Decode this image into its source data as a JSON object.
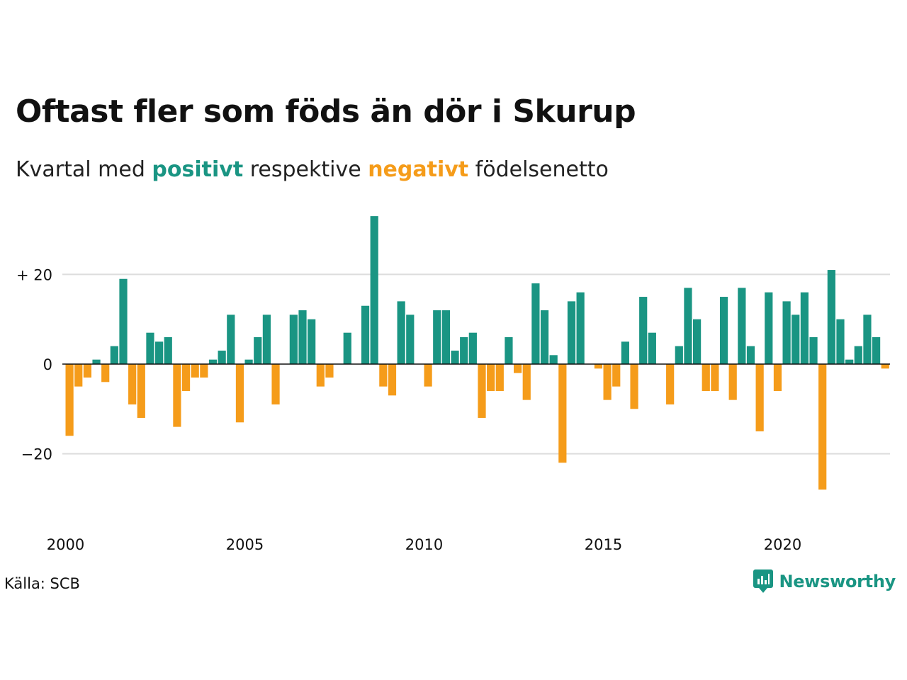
{
  "header": {
    "title": "Oftast fler som föds än dör i Skurup",
    "subtitle_prefix": "Kvartal med ",
    "subtitle_positive": "positivt",
    "subtitle_middle": " respektive ",
    "subtitle_negative": "negativt",
    "subtitle_suffix": " födelsenetto"
  },
  "footer": {
    "source": "Källa: SCB",
    "brand": "Newsworthy",
    "brand_icon": "newsworthy-logo-icon"
  },
  "colors": {
    "positive": "#1a9583",
    "negative": "#f59c1a",
    "grid": "#dddddd",
    "zero_line": "#111111"
  },
  "chart_data": {
    "type": "bar",
    "x_start": "2000 Q1",
    "frequency": "quarterly",
    "values": [
      -16,
      -5,
      -3,
      1,
      -4,
      4,
      19,
      -9,
      -12,
      7,
      5,
      6,
      -14,
      -6,
      -3,
      -3,
      1,
      3,
      11,
      -13,
      1,
      6,
      11,
      -9,
      0,
      11,
      12,
      10,
      -5,
      -3,
      0,
      7,
      0,
      13,
      33,
      -5,
      -7,
      14,
      11,
      0,
      -5,
      12,
      12,
      3,
      6,
      7,
      -12,
      -6,
      -6,
      6,
      -2,
      -8,
      18,
      12,
      2,
      -22,
      14,
      16,
      0,
      -1,
      -8,
      -5,
      5,
      -10,
      15,
      7,
      0,
      -9,
      4,
      17,
      10,
      -6,
      -6,
      15,
      -8,
      17,
      4,
      -15,
      16,
      -6,
      14,
      11,
      16,
      6,
      -28,
      21,
      10,
      1,
      4,
      11,
      6,
      -1
    ],
    "yticks": [
      20,
      0,
      -20
    ],
    "ytick_labels": [
      "+ 20",
      "0",
      "−20"
    ],
    "xtick_labels": [
      "2000",
      "2005",
      "2010",
      "2015",
      "2020"
    ],
    "ylim": [
      -35,
      35
    ],
    "grid": true,
    "legend": "none"
  }
}
